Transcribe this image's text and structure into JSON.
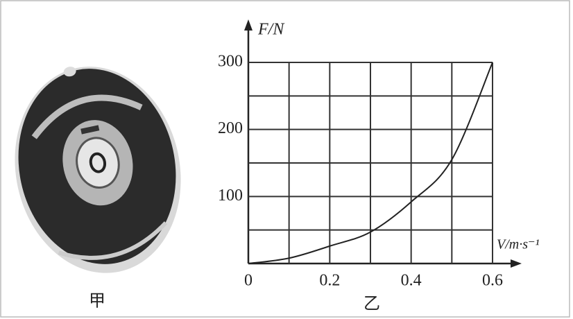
{
  "image_caption": "甲",
  "chart_data": {
    "type": "line",
    "caption": "乙",
    "y_label": "F/N",
    "x_label": "V/m·s⁻¹",
    "x": [
      0,
      0.1,
      0.2,
      0.3,
      0.4,
      0.5,
      0.6
    ],
    "values": [
      0,
      8,
      26,
      47,
      92,
      155,
      300
    ],
    "color": "#222",
    "xlim": [
      0,
      0.6
    ],
    "ylim": [
      0,
      300
    ],
    "xticks": [
      0,
      0.2,
      0.4,
      0.6
    ],
    "yticks": [
      100,
      200,
      300
    ],
    "xgrid": [
      0.1,
      0.2,
      0.3,
      0.4,
      0.5,
      0.6
    ],
    "ygrid": [
      50,
      100,
      150,
      200,
      250,
      300
    ],
    "grid": true
  }
}
